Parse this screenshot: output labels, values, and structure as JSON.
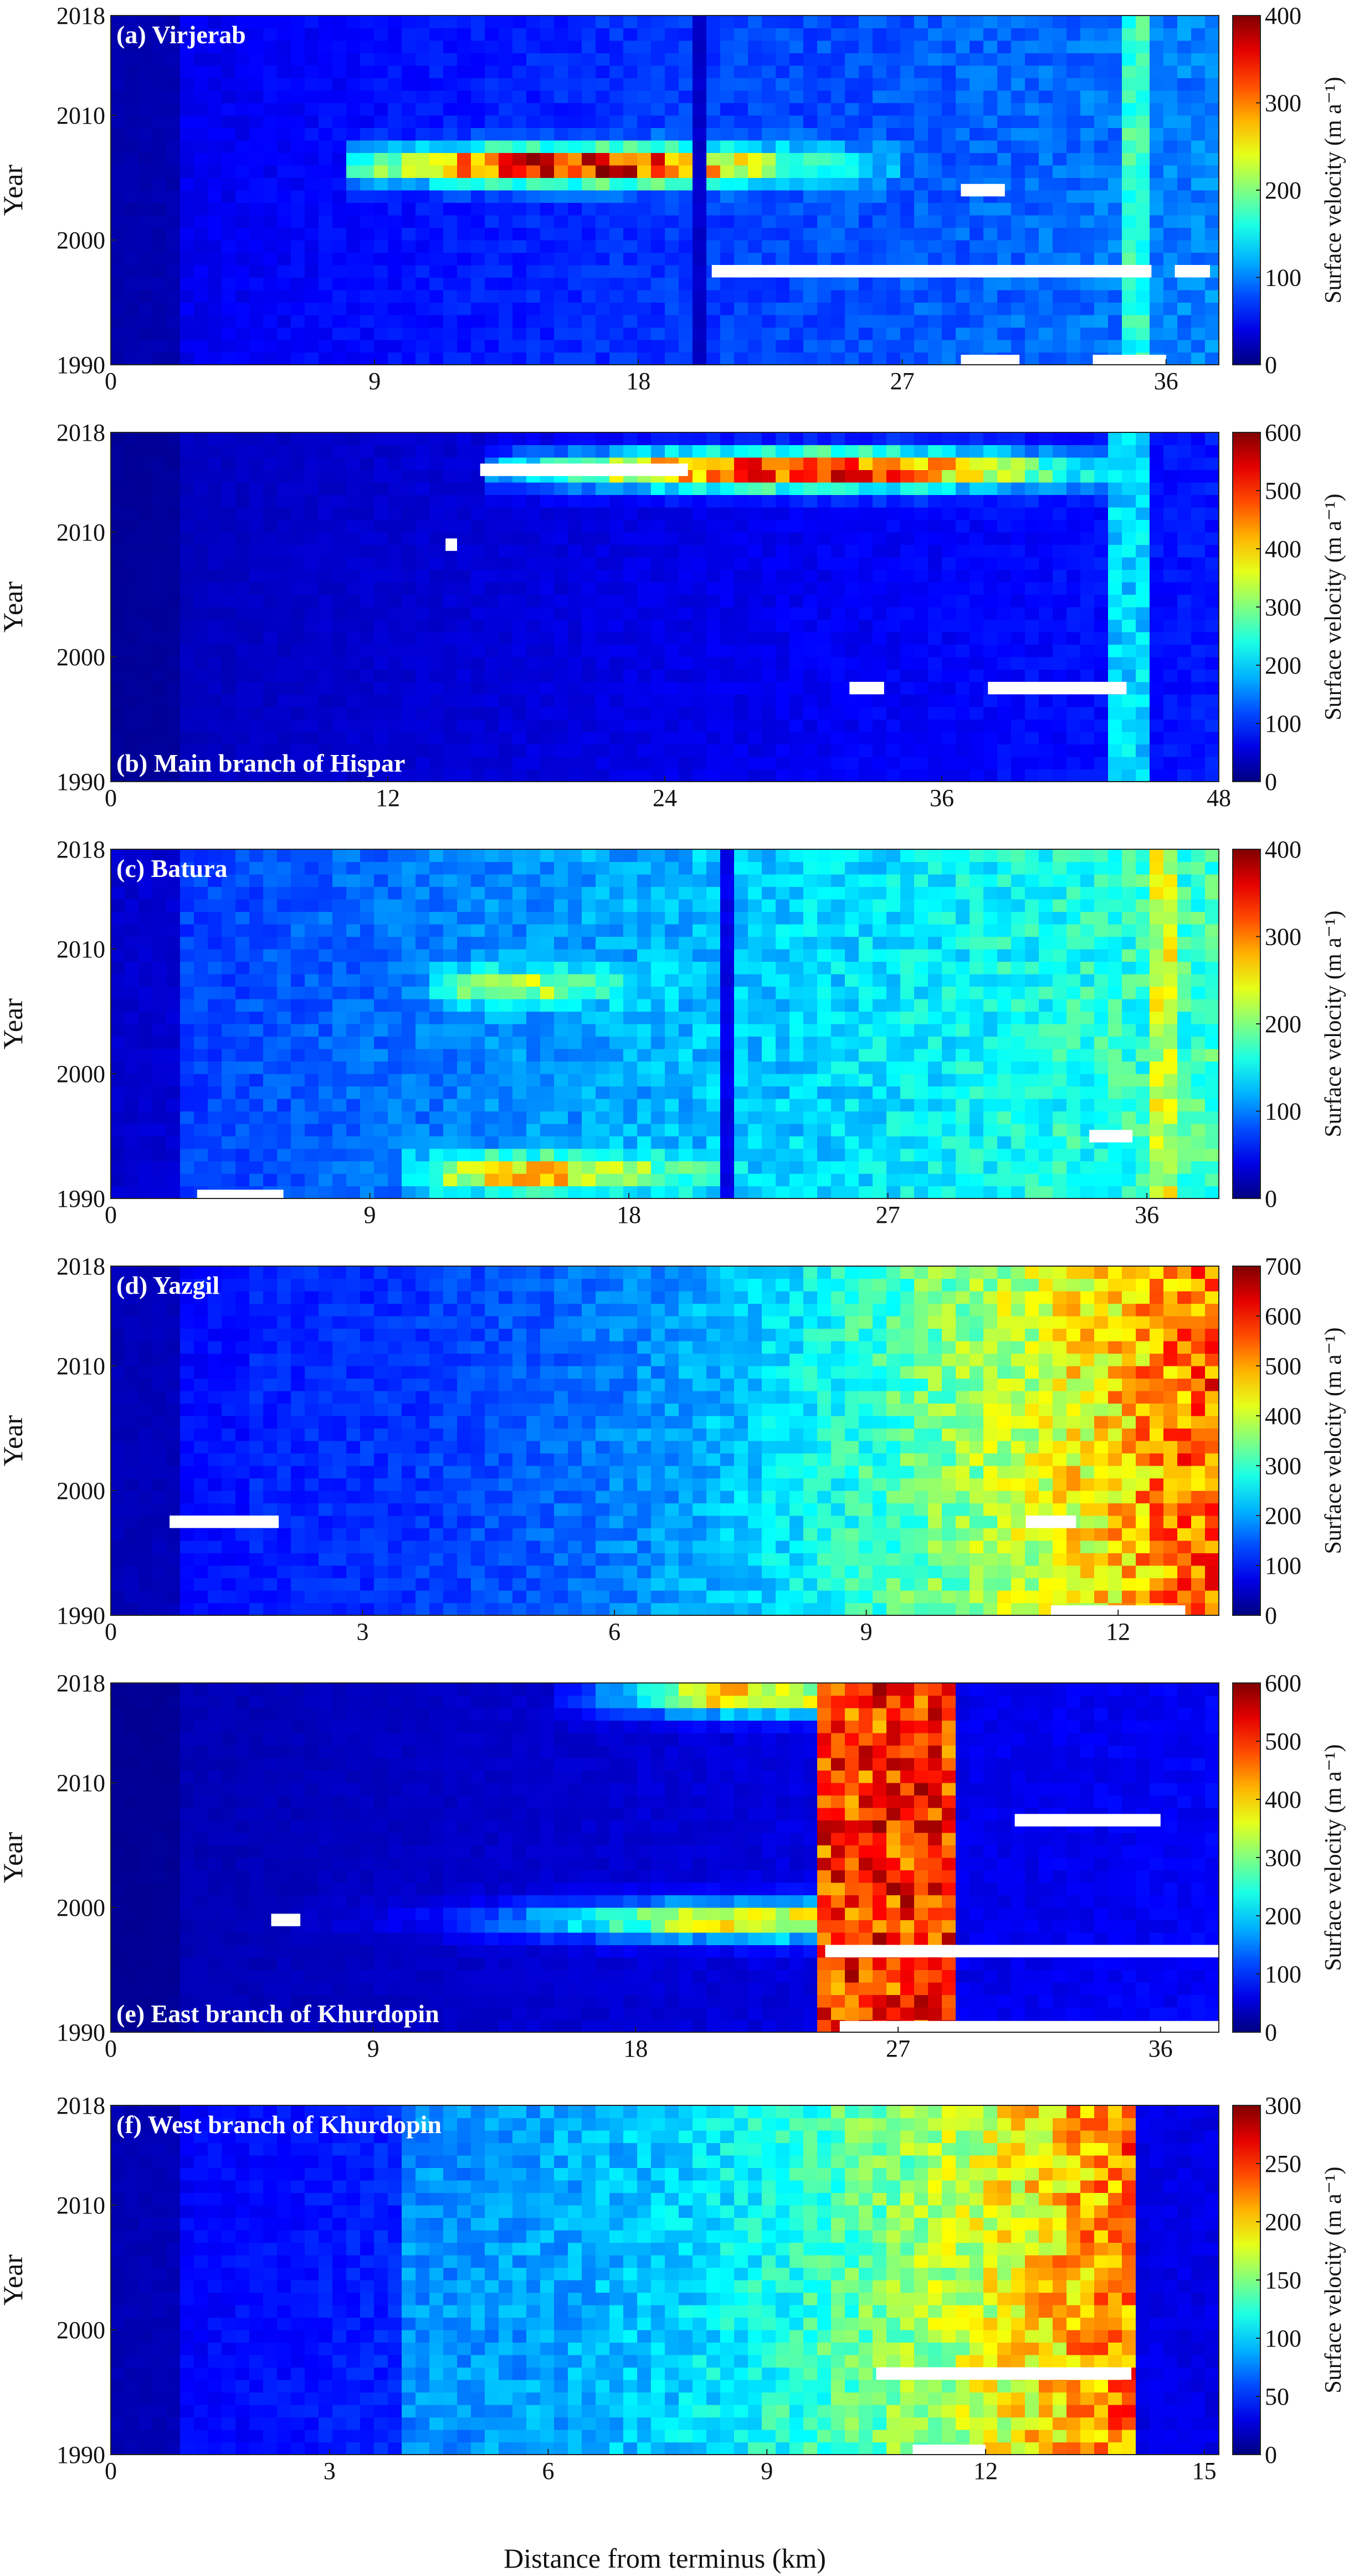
{
  "figure": {
    "xlabel": "Distance from terminus (km)"
  },
  "chart_data": [
    {
      "type": "heatmap",
      "panel_label": "(a) Virjerab",
      "ylabel": "Year",
      "x_ticks": [
        "0",
        "9",
        "18",
        "27",
        "36"
      ],
      "y_ticks": [
        "2018",
        "2010",
        "2000",
        "1990"
      ],
      "xlim": [
        0,
        37.8
      ],
      "ylim": [
        1990,
        2018
      ],
      "colorbar": {
        "label": "Surface velocity (m a⁻¹)",
        "min": 0,
        "max": 400,
        "ticks": [
          "400",
          "300",
          "200",
          "100",
          "0"
        ]
      },
      "colormap": "jet",
      "background_velocity": 70,
      "features": [
        {
          "kind": "surge_band",
          "year": 2006,
          "x_from": 8,
          "x_to": 27,
          "peak_x": 16,
          "peak_velocity": 380
        },
        {
          "kind": "steep_zone",
          "x": 35,
          "velocity": 170
        },
        {
          "kind": "fast_column",
          "x": 20,
          "velocity": 30
        },
        {
          "kind": "no_data",
          "year": 1997.5,
          "x_from": 20.5,
          "x_to": 35.5
        },
        {
          "kind": "no_data",
          "year": 1997.5,
          "x_from": 36.3,
          "x_to": 37.5
        },
        {
          "kind": "no_data",
          "year": 1990.3,
          "x_from": 29,
          "x_to": 31
        },
        {
          "kind": "no_data",
          "year": 1990.3,
          "x_from": 33.5,
          "x_to": 36
        },
        {
          "kind": "no_data",
          "year": 2004,
          "x_from": 29,
          "x_to": 30.5
        }
      ]
    },
    {
      "type": "heatmap",
      "panel_label": "(b) Main branch of Hispar",
      "ylabel": "Year",
      "x_ticks": [
        "0",
        "12",
        "24",
        "36",
        "48"
      ],
      "y_ticks": [
        "2018",
        "2010",
        "2000",
        "1990"
      ],
      "xlim": [
        0,
        48
      ],
      "ylim": [
        1990,
        2018
      ],
      "colorbar": {
        "label": "Surface velocity (m a⁻¹)",
        "min": 0,
        "max": 600,
        "ticks": [
          "600",
          "500",
          "400",
          "300",
          "200",
          "100",
          "0"
        ]
      },
      "colormap": "jet",
      "background_velocity": 60,
      "features": [
        {
          "kind": "surge_band",
          "year": 2015,
          "x_from": 16,
          "x_to": 44,
          "peak_x": 30,
          "peak_velocity": 560
        },
        {
          "kind": "steep_zone",
          "x": 44,
          "velocity": 200
        },
        {
          "kind": "no_data",
          "year": 2015,
          "x_from": 16,
          "x_to": 25
        },
        {
          "kind": "no_data",
          "year": 1997.5,
          "x_from": 38,
          "x_to": 44
        },
        {
          "kind": "no_data",
          "year": 1997.5,
          "x_from": 32,
          "x_to": 33.5
        },
        {
          "kind": "no_data",
          "year": 2009,
          "x_from": 14.5,
          "x_to": 15
        }
      ]
    },
    {
      "type": "heatmap",
      "panel_label": "(c) Batura",
      "ylabel": "Year",
      "x_ticks": [
        "0",
        "9",
        "18",
        "27",
        "36"
      ],
      "y_ticks": [
        "2018",
        "2010",
        "2000",
        "1990"
      ],
      "xlim": [
        0,
        38.5
      ],
      "ylim": [
        1990,
        2018
      ],
      "colorbar": {
        "label": "Surface velocity (m a⁻¹)",
        "min": 0,
        "max": 400,
        "ticks": [
          "400",
          "300",
          "200",
          "100",
          "0"
        ]
      },
      "colormap": "jet",
      "background_velocity": 120,
      "features": [
        {
          "kind": "surge_band",
          "year": 1992,
          "x_from": 10,
          "x_to": 22,
          "peak_x": 15,
          "peak_velocity": 280
        },
        {
          "kind": "surge_band",
          "year": 2007,
          "x_from": 11,
          "x_to": 20,
          "peak_x": 14,
          "peak_velocity": 230
        },
        {
          "kind": "steep_zone",
          "x": 36.5,
          "velocity": 230
        },
        {
          "kind": "fast_column",
          "x": 21.5,
          "velocity": 40
        },
        {
          "kind": "no_data",
          "year": 1990.2,
          "x_from": 3,
          "x_to": 6
        },
        {
          "kind": "no_data",
          "year": 1995,
          "x_from": 34,
          "x_to": 35.5
        }
      ]
    },
    {
      "type": "heatmap",
      "panel_label": "(d) Yazgil",
      "ylabel": "Year",
      "x_ticks": [
        "0",
        "3",
        "6",
        "9",
        "12"
      ],
      "y_ticks": [
        "2018",
        "2010",
        "2000",
        "1990"
      ],
      "xlim": [
        0,
        13.2
      ],
      "ylim": [
        1990,
        2018
      ],
      "colorbar": {
        "label": "Surface velocity (m a⁻¹)",
        "min": 0,
        "max": 700,
        "ticks": [
          "700",
          "600",
          "500",
          "400",
          "300",
          "200",
          "100",
          "0"
        ]
      },
      "colormap": "jet",
      "background_velocity": 150,
      "features": [
        {
          "kind": "gradient_upstream",
          "x_from": 1.6,
          "x_to": 13.2,
          "velocity_from": 110,
          "velocity_to": 560
        },
        {
          "kind": "no_data",
          "year": 1997.5,
          "x_from": 0.7,
          "x_to": 2
        },
        {
          "kind": "no_data",
          "year": 1997.5,
          "x_from": 10.9,
          "x_to": 11.5
        },
        {
          "kind": "no_data",
          "year": 1990.3,
          "x_from": 11.2,
          "x_to": 12.8
        }
      ]
    },
    {
      "type": "heatmap",
      "panel_label": "(e) East branch of Khurdopin",
      "ylabel": "Year",
      "x_ticks": [
        "0",
        "9",
        "18",
        "27",
        "36"
      ],
      "y_ticks": [
        "2018",
        "2010",
        "2000",
        "1990"
      ],
      "xlim": [
        0,
        38
      ],
      "ylim": [
        1990,
        2018
      ],
      "colorbar": {
        "label": "Surface velocity (m a⁻¹)",
        "min": 0,
        "max": 600,
        "ticks": [
          "600",
          "500",
          "400",
          "300",
          "200",
          "100",
          "0"
        ]
      },
      "colormap": "jet",
      "background_velocity": 50,
      "features": [
        {
          "kind": "surge_band",
          "year": 2017,
          "x_from": 15,
          "x_to": 26,
          "peak_x": 22,
          "peak_velocity": 430
        },
        {
          "kind": "surge_band",
          "year": 1999,
          "x_from": 6,
          "x_to": 26,
          "peak_x": 23,
          "peak_velocity": 400
        },
        {
          "kind": "fast_zone",
          "x_from": 24,
          "x_to": 29,
          "velocity": 500
        },
        {
          "kind": "no_data",
          "year": 1996.5,
          "x_from": 24.5,
          "x_to": 38
        },
        {
          "kind": "no_data",
          "year": 2007,
          "x_from": 31,
          "x_to": 36
        },
        {
          "kind": "no_data",
          "year": 1990.4,
          "x_from": 25,
          "x_to": 38
        },
        {
          "kind": "no_data",
          "year": 1999,
          "x_from": 5.5,
          "x_to": 6.5
        }
      ]
    },
    {
      "type": "heatmap",
      "panel_label": "(f) West branch of Khurdopin",
      "ylabel": "Year",
      "x_ticks": [
        "0",
        "3",
        "6",
        "9",
        "12",
        "15"
      ],
      "y_ticks": [
        "2018",
        "2010",
        "2000",
        "1990"
      ],
      "xlim": [
        0,
        15.2
      ],
      "ylim": [
        1990,
        2018
      ],
      "colorbar": {
        "label": "Surface velocity (m a⁻¹)",
        "min": 0,
        "max": 300,
        "ticks": [
          "300",
          "250",
          "200",
          "150",
          "100",
          "50",
          "0"
        ]
      },
      "colormap": "jet",
      "background_velocity": 60,
      "features": [
        {
          "kind": "gradient_upstream",
          "x_from": 4,
          "x_to": 14,
          "velocity_from": 80,
          "velocity_to": 230
        },
        {
          "kind": "slow_zone",
          "x_from": 14,
          "x_to": 15.2,
          "velocity": 30
        },
        {
          "kind": "no_data",
          "year": 1996.5,
          "x_from": 10.5,
          "x_to": 14
        },
        {
          "kind": "no_data",
          "year": 1990.3,
          "x_from": 11,
          "x_to": 12
        }
      ]
    }
  ]
}
